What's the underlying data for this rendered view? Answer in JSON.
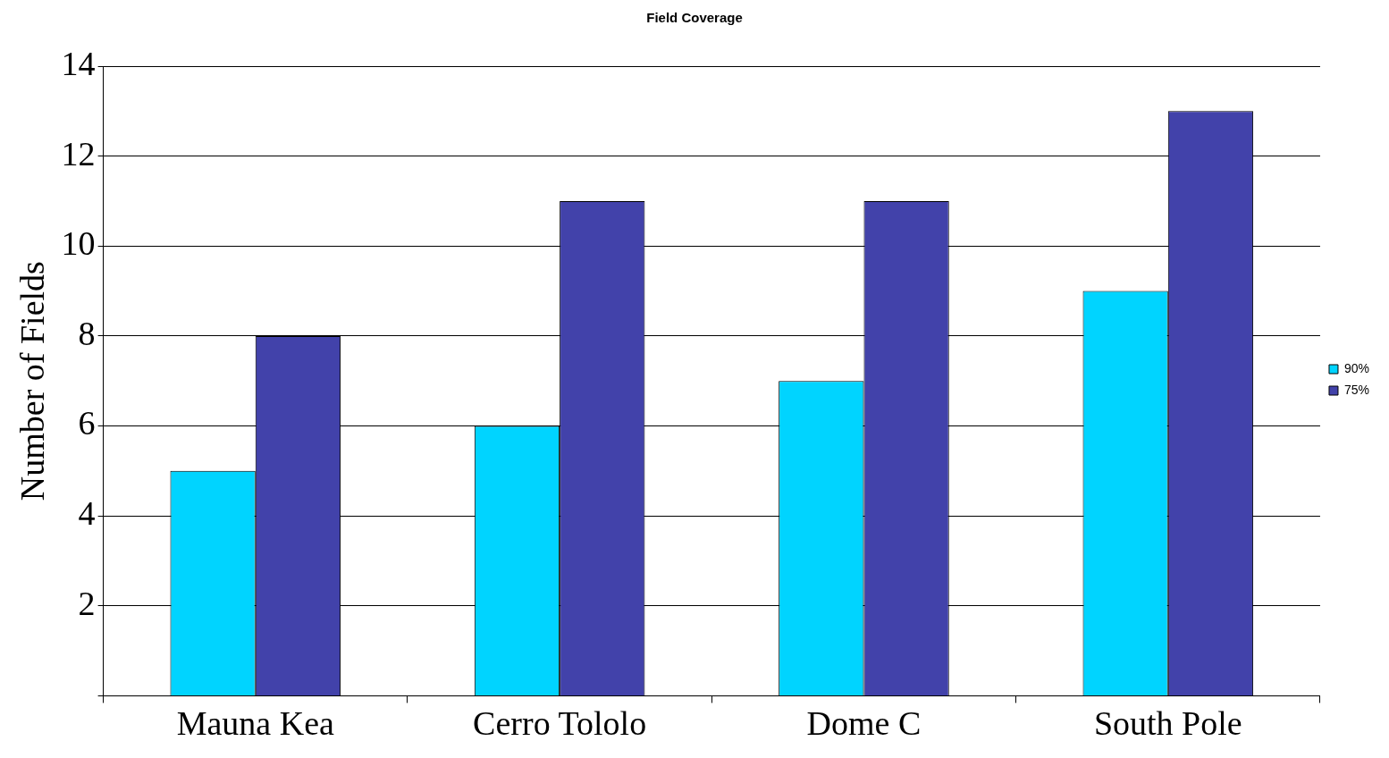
{
  "chart_data": {
    "type": "bar",
    "title": "Field Coverage",
    "ylabel": "Number of Fields",
    "categories": [
      "Mauna Kea",
      "Cerro Tololo",
      "Dome C",
      "South Pole"
    ],
    "series": [
      {
        "name": "90%",
        "color": "#00d4ff",
        "values": [
          5,
          6,
          7,
          9
        ]
      },
      {
        "name": "75%",
        "color": "#4242aa",
        "values": [
          8,
          11,
          11,
          13
        ]
      }
    ],
    "ylim": [
      0,
      14
    ],
    "yticks": [
      {
        "value": 0,
        "label": null
      },
      2,
      4,
      6,
      8,
      10,
      12,
      14
    ],
    "grid": "y",
    "legend": "right"
  }
}
